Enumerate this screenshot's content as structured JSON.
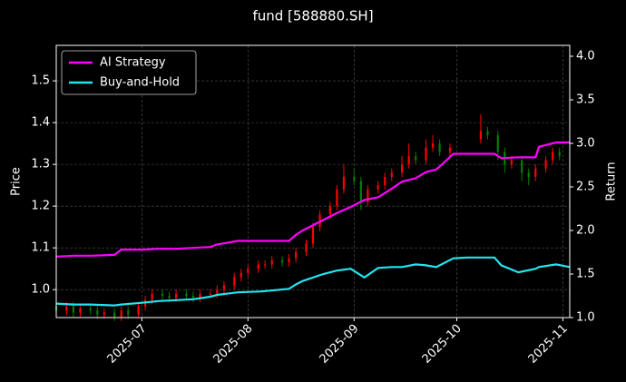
{
  "chart_data": {
    "type": "candlestick",
    "title": "fund [588880.SH]",
    "ylabel": "Price",
    "y2label": "Return",
    "x": [
      0,
      3,
      5,
      7,
      10,
      12,
      14,
      17,
      19,
      21,
      24,
      26,
      28,
      31,
      33,
      35,
      38,
      40,
      42,
      45,
      47,
      49,
      52,
      54,
      56,
      59,
      61,
      63,
      66,
      68,
      70,
      73,
      75,
      77,
      80,
      82,
      84,
      87,
      89,
      91,
      94,
      96,
      98,
      101,
      103,
      105,
      108,
      110,
      112,
      115,
      124,
      126,
      129,
      131,
      133,
      136,
      138,
      140,
      143,
      145,
      147
    ],
    "open": [
      0.96,
      0.95,
      0.96,
      0.945,
      0.955,
      0.95,
      0.94,
      0.945,
      0.935,
      0.95,
      0.94,
      0.96,
      0.975,
      0.99,
      0.985,
      0.98,
      0.99,
      0.985,
      0.98,
      0.99,
      0.99,
      1.0,
      1.01,
      1.03,
      1.04,
      1.05,
      1.06,
      1.06,
      1.07,
      1.065,
      1.075,
      1.09,
      1.11,
      1.15,
      1.18,
      1.2,
      1.24,
      1.27,
      1.26,
      1.21,
      1.24,
      1.25,
      1.27,
      1.28,
      1.3,
      1.32,
      1.31,
      1.34,
      1.35,
      1.33,
      1.36,
      1.38,
      1.37,
      1.33,
      1.3,
      1.31,
      1.28,
      1.27,
      1.29,
      1.31,
      1.33
    ],
    "close": [
      0.95,
      0.96,
      0.945,
      0.955,
      0.95,
      0.94,
      0.945,
      0.935,
      0.95,
      0.94,
      0.96,
      0.975,
      0.99,
      0.985,
      0.98,
      0.99,
      0.985,
      0.98,
      0.99,
      0.99,
      1.0,
      1.01,
      1.03,
      1.04,
      1.05,
      1.06,
      1.06,
      1.07,
      1.065,
      1.075,
      1.09,
      1.11,
      1.15,
      1.18,
      1.2,
      1.24,
      1.27,
      1.26,
      1.21,
      1.24,
      1.25,
      1.27,
      1.28,
      1.3,
      1.32,
      1.31,
      1.34,
      1.35,
      1.33,
      1.34,
      1.38,
      1.37,
      1.33,
      1.3,
      1.31,
      1.28,
      1.27,
      1.29,
      1.31,
      1.33,
      1.32
    ],
    "high": [
      0.97,
      0.97,
      0.97,
      0.965,
      0.965,
      0.96,
      0.955,
      0.955,
      0.96,
      0.96,
      0.97,
      0.985,
      1.0,
      1.0,
      0.995,
      1.0,
      1.0,
      0.995,
      1.0,
      1.0,
      1.01,
      1.02,
      1.04,
      1.05,
      1.06,
      1.07,
      1.07,
      1.08,
      1.08,
      1.085,
      1.1,
      1.12,
      1.16,
      1.19,
      1.21,
      1.25,
      1.3,
      1.29,
      1.27,
      1.25,
      1.26,
      1.28,
      1.29,
      1.32,
      1.35,
      1.33,
      1.36,
      1.37,
      1.36,
      1.35,
      1.42,
      1.39,
      1.38,
      1.34,
      1.32,
      1.32,
      1.29,
      1.3,
      1.32,
      1.34,
      1.34
    ],
    "low": [
      0.94,
      0.94,
      0.935,
      0.935,
      0.94,
      0.93,
      0.93,
      0.925,
      0.925,
      0.93,
      0.935,
      0.95,
      0.965,
      0.975,
      0.97,
      0.97,
      0.975,
      0.97,
      0.97,
      0.98,
      0.98,
      0.99,
      1.0,
      1.02,
      1.03,
      1.04,
      1.05,
      1.05,
      1.055,
      1.055,
      1.065,
      1.08,
      1.1,
      1.14,
      1.17,
      1.19,
      1.23,
      1.25,
      1.19,
      1.2,
      1.23,
      1.24,
      1.26,
      1.27,
      1.29,
      1.3,
      1.3,
      1.33,
      1.32,
      1.32,
      1.35,
      1.36,
      1.31,
      1.28,
      1.29,
      1.26,
      1.25,
      1.26,
      1.28,
      1.3,
      1.31
    ],
    "up_color": "#ff0000",
    "down_color": "#008000",
    "series": [
      {
        "name": "AI Strategy",
        "color": "#ff00ff",
        "axis": "y2",
        "x": [
          0,
          5,
          10,
          17,
          19,
          25,
          30,
          35,
          40,
          45,
          47,
          53,
          60,
          68,
          70,
          72,
          78,
          82,
          86,
          90,
          94,
          98,
          101,
          105,
          108,
          111,
          113,
          116,
          120,
          128,
          130,
          135,
          140,
          141,
          146,
          150
        ],
        "values": [
          1.7,
          1.71,
          1.71,
          1.72,
          1.78,
          1.78,
          1.79,
          1.79,
          1.8,
          1.81,
          1.84,
          1.88,
          1.88,
          1.88,
          1.95,
          2.0,
          2.12,
          2.2,
          2.27,
          2.35,
          2.38,
          2.48,
          2.56,
          2.6,
          2.67,
          2.7,
          2.77,
          2.88,
          2.88,
          2.88,
          2.83,
          2.84,
          2.84,
          2.96,
          3.01,
          3.01
        ]
      },
      {
        "name": "Buy-and-Hold",
        "color": "#22e5ee",
        "axis": "y2",
        "x": [
          0,
          5,
          10,
          17,
          19,
          25,
          30,
          35,
          40,
          45,
          47,
          53,
          60,
          68,
          70,
          72,
          78,
          82,
          86,
          90,
          94,
          98,
          101,
          105,
          108,
          111,
          113,
          116,
          120,
          128,
          130,
          135,
          140,
          141,
          146,
          150
        ],
        "values": [
          1.16,
          1.15,
          1.15,
          1.14,
          1.15,
          1.17,
          1.19,
          1.2,
          1.21,
          1.24,
          1.26,
          1.29,
          1.3,
          1.33,
          1.38,
          1.42,
          1.5,
          1.54,
          1.56,
          1.46,
          1.57,
          1.58,
          1.58,
          1.61,
          1.6,
          1.58,
          1.62,
          1.68,
          1.69,
          1.69,
          1.6,
          1.52,
          1.56,
          1.58,
          1.61,
          1.58
        ]
      }
    ],
    "xlim": [
      0,
      150
    ],
    "xticks": [
      {
        "value": 25,
        "label": "2025-07"
      },
      {
        "value": 56,
        "label": "2025-08"
      },
      {
        "value": 87,
        "label": "2025-09"
      },
      {
        "value": 117,
        "label": "2025-10"
      },
      {
        "value": 148,
        "label": "2025-11"
      }
    ],
    "ylim": [
      0.933,
      1.585
    ],
    "yticks": [
      {
        "value": 1,
        "label": "1.0"
      },
      1.1,
      1.2,
      1.3,
      1.4,
      1.5
    ],
    "y2lim": [
      1,
      4.125
    ],
    "y2ticks": [
      {
        "value": 1,
        "label": "1.0"
      },
      1.5,
      {
        "value": 2,
        "label": "2.0"
      },
      2.5,
      {
        "value": 3,
        "label": "3.0"
      },
      3.5,
      {
        "value": 4,
        "label": "4.0"
      }
    ],
    "grid": true,
    "legend": "upper left"
  }
}
